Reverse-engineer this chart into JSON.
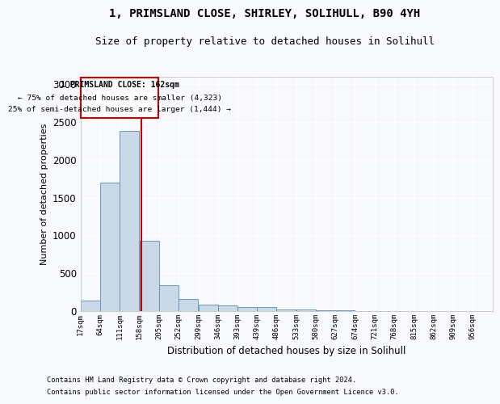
{
  "title1": "1, PRIMSLAND CLOSE, SHIRLEY, SOLIHULL, B90 4YH",
  "title2": "Size of property relative to detached houses in Solihull",
  "xlabel": "Distribution of detached houses by size in Solihull",
  "ylabel": "Number of detached properties",
  "footer1": "Contains HM Land Registry data © Crown copyright and database right 2024.",
  "footer2": "Contains public sector information licensed under the Open Government Licence v3.0.",
  "annotation_line1": "1 PRIMSLAND CLOSE: 162sqm",
  "annotation_line2": "← 75% of detached houses are smaller (4,323)",
  "annotation_line3": "25% of semi-detached houses are larger (1,444) →",
  "bar_edges": [
    17,
    64,
    111,
    158,
    205,
    252,
    299,
    346,
    393,
    439,
    486,
    533,
    580,
    627,
    674,
    721,
    768,
    815,
    862,
    909,
    956
  ],
  "bar_heights": [
    140,
    1700,
    2380,
    930,
    340,
    160,
    90,
    70,
    50,
    50,
    25,
    20,
    15,
    10,
    5,
    0,
    0,
    0,
    0,
    0
  ],
  "bar_color": "#c9d9e8",
  "bar_edge_color": "#5b8db8",
  "red_line_x": 162,
  "ylim": [
    0,
    3100
  ],
  "yticks": [
    0,
    500,
    1000,
    1500,
    2000,
    2500,
    3000
  ],
  "bg_color": "#f7f9fc",
  "plot_bg_color": "#f7f9fc",
  "grid_color": "#ffffff",
  "annotation_box_color": "#cc0000",
  "title1_fontsize": 10,
  "title2_fontsize": 9
}
